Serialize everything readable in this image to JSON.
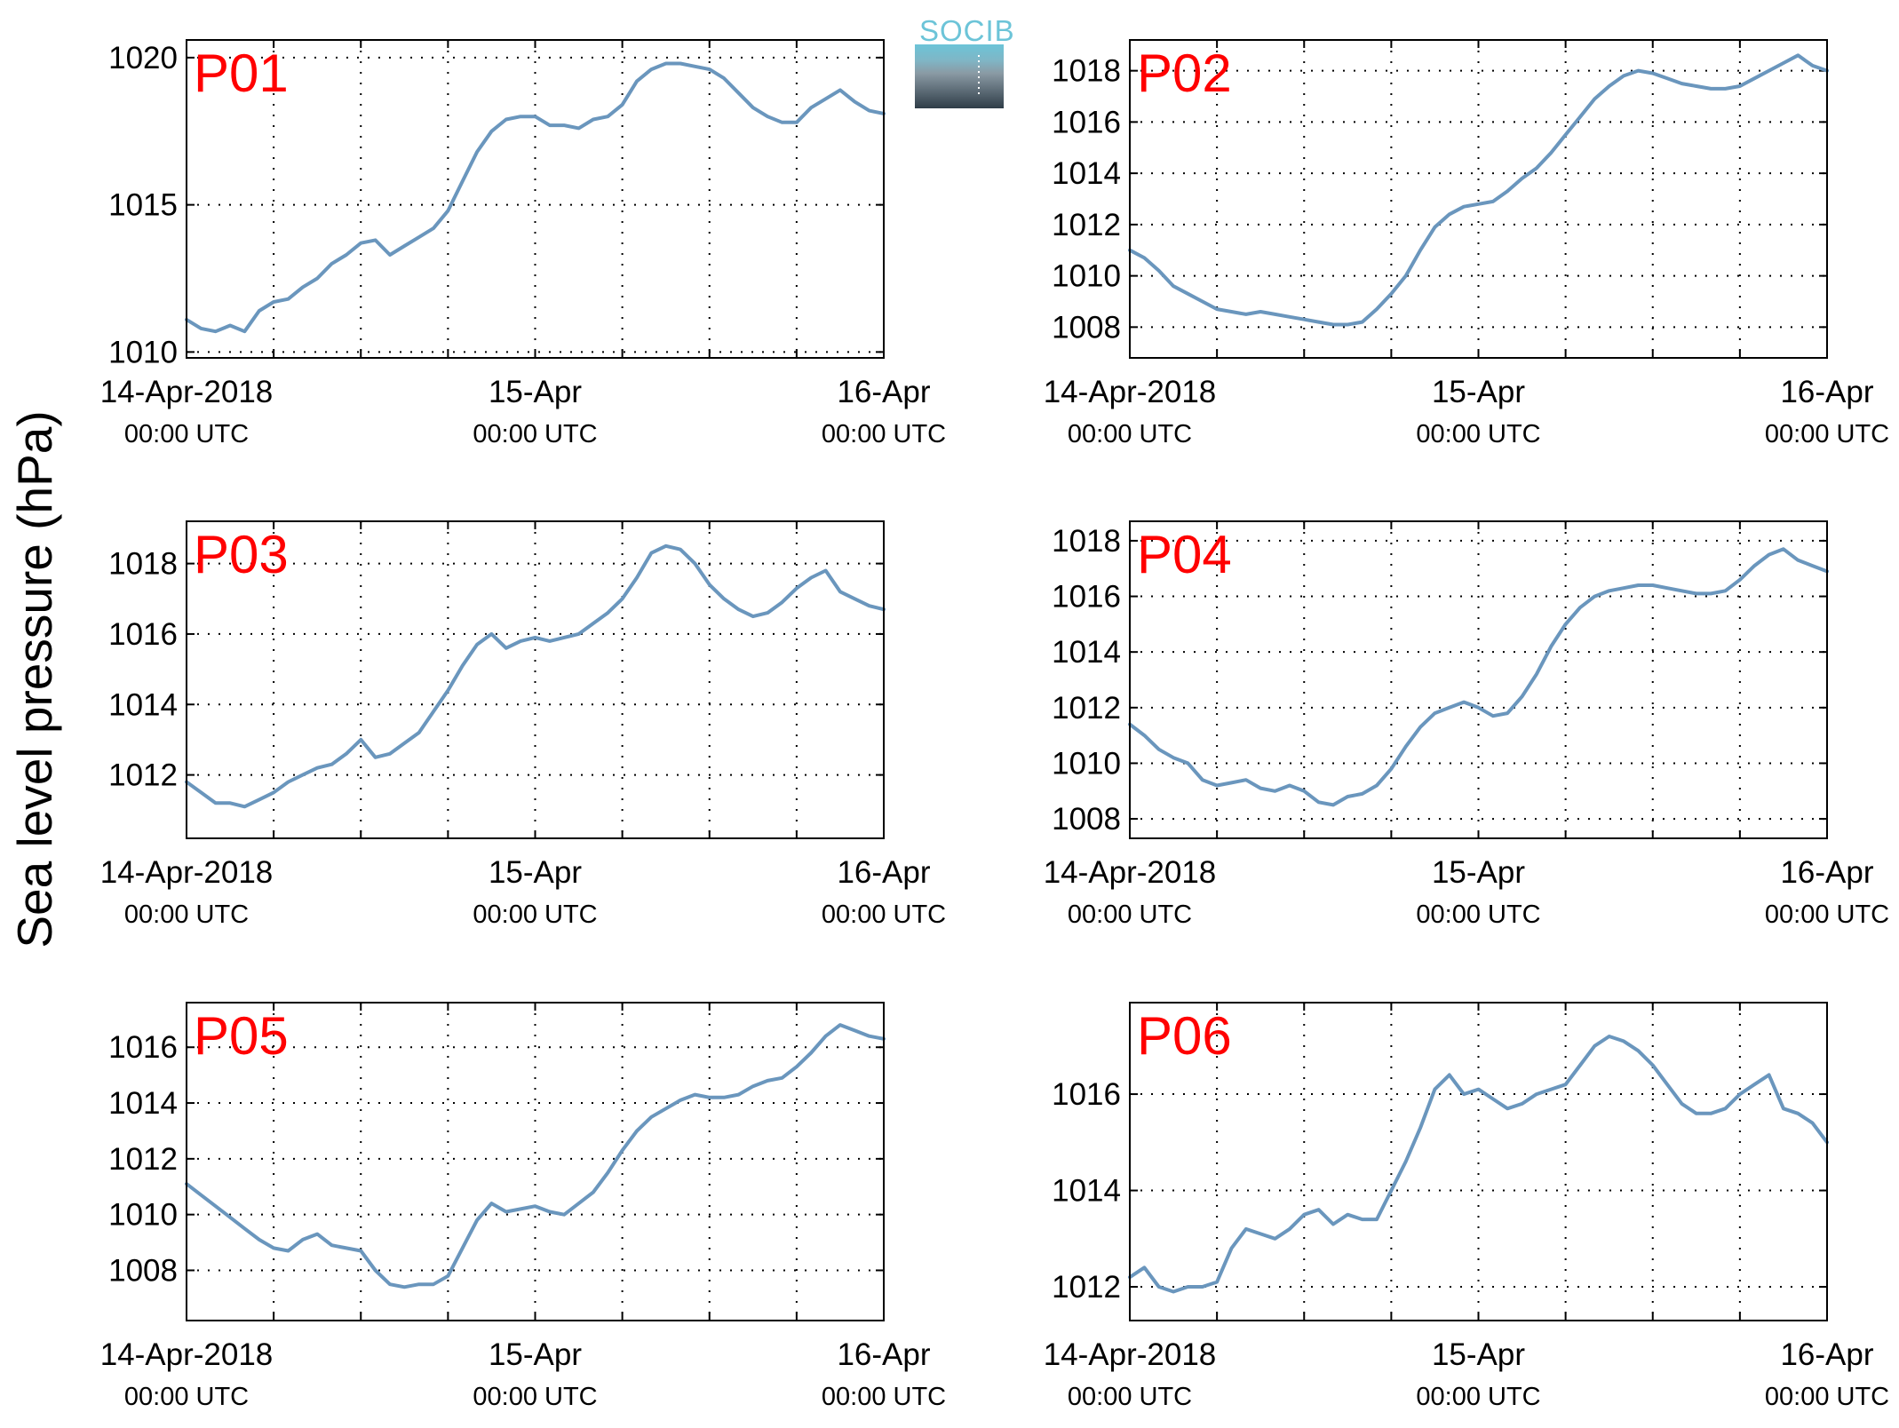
{
  "figure": {
    "ylabel": "Sea level pressure (hPa)",
    "logo_text": "SOCIB",
    "colors": {
      "line": "#6a96bd",
      "panel_label": "#ff0000",
      "grid": "#000000",
      "logo_light": "#6cc4d8",
      "logo_dark": "#2f3d48"
    }
  },
  "chart_data": [
    {
      "type": "line",
      "panel": "P01",
      "xlim": [
        0,
        48
      ],
      "ylim": [
        1009.8,
        1020.6
      ],
      "xticks": [
        0,
        24,
        48
      ],
      "xticklabels": [
        [
          "14-Apr-2018",
          "00:00 UTC"
        ],
        [
          "15-Apr",
          "00:00 UTC"
        ],
        [
          "16-Apr",
          "00:00 UTC"
        ]
      ],
      "yticks": [
        1010,
        1015,
        1020
      ],
      "series": [
        {
          "x": [
            0,
            1,
            2,
            3,
            4,
            5,
            6,
            7,
            8,
            9,
            10,
            11,
            12,
            13,
            14,
            15,
            16,
            17,
            18,
            19,
            20,
            21,
            22,
            23,
            24,
            25,
            26,
            27,
            28,
            29,
            30,
            31,
            32,
            33,
            34,
            35,
            36,
            37,
            38,
            39,
            40,
            41,
            42,
            43,
            44,
            45,
            46,
            47,
            48
          ],
          "y": [
            1011.1,
            1010.8,
            1010.7,
            1010.9,
            1010.7,
            1011.4,
            1011.7,
            1011.8,
            1012.2,
            1012.5,
            1013.0,
            1013.3,
            1013.7,
            1013.8,
            1013.3,
            1013.6,
            1013.9,
            1014.2,
            1014.8,
            1015.8,
            1016.8,
            1017.5,
            1017.9,
            1018.0,
            1018.0,
            1017.7,
            1017.7,
            1017.6,
            1017.9,
            1018.0,
            1018.4,
            1019.2,
            1019.6,
            1019.8,
            1019.8,
            1019.7,
            1019.6,
            1019.3,
            1018.8,
            1018.3,
            1018.0,
            1017.8,
            1017.8,
            1018.3,
            1018.6,
            1018.9,
            1018.5,
            1018.2,
            1018.1
          ]
        }
      ]
    },
    {
      "type": "line",
      "panel": "P02",
      "xlim": [
        0,
        48
      ],
      "ylim": [
        1006.8,
        1019.2
      ],
      "xticks": [
        0,
        24,
        48
      ],
      "xticklabels": [
        [
          "14-Apr-2018",
          "00:00 UTC"
        ],
        [
          "15-Apr",
          "00:00 UTC"
        ],
        [
          "16-Apr",
          "00:00 UTC"
        ]
      ],
      "yticks": [
        1008,
        1010,
        1012,
        1014,
        1016,
        1018
      ],
      "series": [
        {
          "x": [
            0,
            1,
            2,
            3,
            4,
            5,
            6,
            7,
            8,
            9,
            10,
            11,
            12,
            13,
            14,
            15,
            16,
            17,
            18,
            19,
            20,
            21,
            22,
            23,
            24,
            25,
            26,
            27,
            28,
            29,
            30,
            31,
            32,
            33,
            34,
            35,
            36,
            37,
            38,
            39,
            40,
            41,
            42,
            43,
            44,
            45,
            46,
            47,
            48
          ],
          "y": [
            1011.0,
            1010.7,
            1010.2,
            1009.6,
            1009.3,
            1009.0,
            1008.7,
            1008.6,
            1008.5,
            1008.6,
            1008.5,
            1008.4,
            1008.3,
            1008.2,
            1008.1,
            1008.1,
            1008.2,
            1008.7,
            1009.3,
            1010.0,
            1011.0,
            1011.9,
            1012.4,
            1012.7,
            1012.8,
            1012.9,
            1013.3,
            1013.8,
            1014.2,
            1014.8,
            1015.5,
            1016.2,
            1016.9,
            1017.4,
            1017.8,
            1018.0,
            1017.9,
            1017.7,
            1017.5,
            1017.4,
            1017.3,
            1017.3,
            1017.4,
            1017.7,
            1018.0,
            1018.3,
            1018.6,
            1018.2,
            1018.0
          ]
        }
      ]
    },
    {
      "type": "line",
      "panel": "P03",
      "xlim": [
        0,
        48
      ],
      "ylim": [
        1010.2,
        1019.2
      ],
      "xticks": [
        0,
        24,
        48
      ],
      "xticklabels": [
        [
          "14-Apr-2018",
          "00:00 UTC"
        ],
        [
          "15-Apr",
          "00:00 UTC"
        ],
        [
          "16-Apr",
          "00:00 UTC"
        ]
      ],
      "yticks": [
        1012,
        1014,
        1016,
        1018
      ],
      "series": [
        {
          "x": [
            0,
            1,
            2,
            3,
            4,
            5,
            6,
            7,
            8,
            9,
            10,
            11,
            12,
            13,
            14,
            15,
            16,
            17,
            18,
            19,
            20,
            21,
            22,
            23,
            24,
            25,
            26,
            27,
            28,
            29,
            30,
            31,
            32,
            33,
            34,
            35,
            36,
            37,
            38,
            39,
            40,
            41,
            42,
            43,
            44,
            45,
            46,
            47,
            48
          ],
          "y": [
            1011.8,
            1011.5,
            1011.2,
            1011.2,
            1011.1,
            1011.3,
            1011.5,
            1011.8,
            1012.0,
            1012.2,
            1012.3,
            1012.6,
            1013.0,
            1012.5,
            1012.6,
            1012.9,
            1013.2,
            1013.8,
            1014.4,
            1015.1,
            1015.7,
            1016.0,
            1015.6,
            1015.8,
            1015.9,
            1015.8,
            1015.9,
            1016.0,
            1016.3,
            1016.6,
            1017.0,
            1017.6,
            1018.3,
            1018.5,
            1018.4,
            1018.0,
            1017.4,
            1017.0,
            1016.7,
            1016.5,
            1016.6,
            1016.9,
            1017.3,
            1017.6,
            1017.8,
            1017.2,
            1017.0,
            1016.8,
            1016.7
          ]
        }
      ]
    },
    {
      "type": "line",
      "panel": "P04",
      "xlim": [
        0,
        48
      ],
      "ylim": [
        1007.3,
        1018.7
      ],
      "xticks": [
        0,
        24,
        48
      ],
      "xticklabels": [
        [
          "14-Apr-2018",
          "00:00 UTC"
        ],
        [
          "15-Apr",
          "00:00 UTC"
        ],
        [
          "16-Apr",
          "00:00 UTC"
        ]
      ],
      "yticks": [
        1008,
        1010,
        1012,
        1014,
        1016,
        1018
      ],
      "series": [
        {
          "x": [
            0,
            1,
            2,
            3,
            4,
            5,
            6,
            7,
            8,
            9,
            10,
            11,
            12,
            13,
            14,
            15,
            16,
            17,
            18,
            19,
            20,
            21,
            22,
            23,
            24,
            25,
            26,
            27,
            28,
            29,
            30,
            31,
            32,
            33,
            34,
            35,
            36,
            37,
            38,
            39,
            40,
            41,
            42,
            43,
            44,
            45,
            46,
            47,
            48
          ],
          "y": [
            1011.4,
            1011.0,
            1010.5,
            1010.2,
            1010.0,
            1009.4,
            1009.2,
            1009.3,
            1009.4,
            1009.1,
            1009.0,
            1009.2,
            1009.0,
            1008.6,
            1008.5,
            1008.8,
            1008.9,
            1009.2,
            1009.8,
            1010.6,
            1011.3,
            1011.8,
            1012.0,
            1012.2,
            1012.0,
            1011.7,
            1011.8,
            1012.4,
            1013.2,
            1014.2,
            1015.0,
            1015.6,
            1016.0,
            1016.2,
            1016.3,
            1016.4,
            1016.4,
            1016.3,
            1016.2,
            1016.1,
            1016.1,
            1016.2,
            1016.6,
            1017.1,
            1017.5,
            1017.7,
            1017.3,
            1017.1,
            1016.9
          ]
        }
      ]
    },
    {
      "type": "line",
      "panel": "P05",
      "xlim": [
        0,
        48
      ],
      "ylim": [
        1006.2,
        1017.6
      ],
      "xticks": [
        0,
        24,
        48
      ],
      "xticklabels": [
        [
          "14-Apr-2018",
          "00:00 UTC"
        ],
        [
          "15-Apr",
          "00:00 UTC"
        ],
        [
          "16-Apr",
          "00:00 UTC"
        ]
      ],
      "yticks": [
        1008,
        1010,
        1012,
        1014,
        1016
      ],
      "series": [
        {
          "x": [
            0,
            1,
            2,
            3,
            4,
            5,
            6,
            7,
            8,
            9,
            10,
            11,
            12,
            13,
            14,
            15,
            16,
            17,
            18,
            19,
            20,
            21,
            22,
            23,
            24,
            25,
            26,
            27,
            28,
            29,
            30,
            31,
            32,
            33,
            34,
            35,
            36,
            37,
            38,
            39,
            40,
            41,
            42,
            43,
            44,
            45,
            46,
            47,
            48
          ],
          "y": [
            1011.1,
            1010.7,
            1010.3,
            1009.9,
            1009.5,
            1009.1,
            1008.8,
            1008.7,
            1009.1,
            1009.3,
            1008.9,
            1008.8,
            1008.7,
            1008.0,
            1007.5,
            1007.4,
            1007.5,
            1007.5,
            1007.8,
            1008.8,
            1009.8,
            1010.4,
            1010.1,
            1010.2,
            1010.3,
            1010.1,
            1010.0,
            1010.4,
            1010.8,
            1011.5,
            1012.3,
            1013.0,
            1013.5,
            1013.8,
            1014.1,
            1014.3,
            1014.2,
            1014.2,
            1014.3,
            1014.6,
            1014.8,
            1014.9,
            1015.3,
            1015.8,
            1016.4,
            1016.8,
            1016.6,
            1016.4,
            1016.3
          ]
        }
      ]
    },
    {
      "type": "line",
      "panel": "P06",
      "xlim": [
        0,
        48
      ],
      "ylim": [
        1011.3,
        1017.9
      ],
      "xticks": [
        0,
        24,
        48
      ],
      "xticklabels": [
        [
          "14-Apr-2018",
          "00:00 UTC"
        ],
        [
          "15-Apr",
          "00:00 UTC"
        ],
        [
          "16-Apr",
          "00:00 UTC"
        ]
      ],
      "yticks": [
        1012,
        1014,
        1016
      ],
      "series": [
        {
          "x": [
            0,
            1,
            2,
            3,
            4,
            5,
            6,
            7,
            8,
            9,
            10,
            11,
            12,
            13,
            14,
            15,
            16,
            17,
            18,
            19,
            20,
            21,
            22,
            23,
            24,
            25,
            26,
            27,
            28,
            29,
            30,
            31,
            32,
            33,
            34,
            35,
            36,
            37,
            38,
            39,
            40,
            41,
            42,
            43,
            44,
            45,
            46,
            47,
            48
          ],
          "y": [
            1012.2,
            1012.4,
            1012.0,
            1011.9,
            1012.0,
            1012.0,
            1012.1,
            1012.8,
            1013.2,
            1013.1,
            1013.0,
            1013.2,
            1013.5,
            1013.6,
            1013.3,
            1013.5,
            1013.4,
            1013.4,
            1014.0,
            1014.6,
            1015.3,
            1016.1,
            1016.4,
            1016.0,
            1016.1,
            1015.9,
            1015.7,
            1015.8,
            1016.0,
            1016.1,
            1016.2,
            1016.6,
            1017.0,
            1017.2,
            1017.1,
            1016.9,
            1016.6,
            1016.2,
            1015.8,
            1015.6,
            1015.6,
            1015.7,
            1016.0,
            1016.2,
            1016.4,
            1015.7,
            1015.6,
            1015.4,
            1015.0
          ]
        }
      ]
    }
  ]
}
